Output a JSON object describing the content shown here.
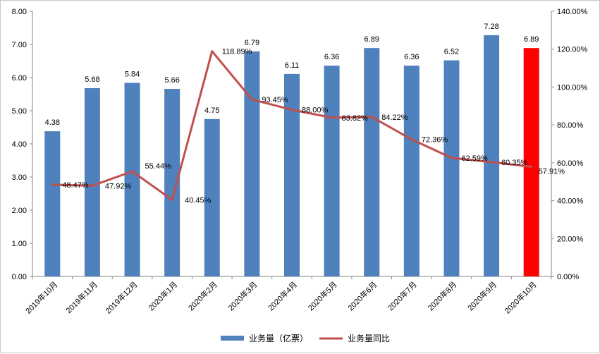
{
  "chart_data": {
    "type": "bar",
    "categories": [
      "2019年10月",
      "2019年11月",
      "2019年12月",
      "2020年1月",
      "2020年2月",
      "2020年3月",
      "2020年4月",
      "2020年5月",
      "2020年6月",
      "2020年7月",
      "2020年8月",
      "2020年9月",
      "2020年10月"
    ],
    "series": [
      {
        "name": "业务量（亿票）",
        "type": "bar",
        "axis": "left",
        "color": "#4f81bd",
        "highlight_color": "#ff0000",
        "highlight_index": 12,
        "values": [
          4.38,
          5.68,
          5.84,
          5.66,
          4.75,
          6.79,
          6.11,
          6.36,
          6.89,
          6.36,
          6.52,
          7.28,
          6.89
        ],
        "labels": [
          "4.38",
          "5.68",
          "5.84",
          "5.66",
          "4.75",
          "6.79",
          "6.11",
          "6.36",
          "6.89",
          "6.36",
          "6.52",
          "7.28",
          "6.89"
        ]
      },
      {
        "name": "业务量同比",
        "type": "line",
        "axis": "right",
        "color": "#c0504d",
        "values": [
          48.47,
          47.92,
          55.44,
          40.45,
          118.89,
          93.45,
          88.0,
          83.82,
          84.22,
          72.36,
          62.59,
          60.35,
          57.91
        ],
        "labels": [
          "48.47%",
          "47.92%",
          "55.44%",
          "40.45%",
          "118.89%",
          "93.45%",
          "88.00%",
          "83.82%",
          "84.22%",
          "72.36%",
          "62.59%",
          "60.35%",
          "57.91%"
        ]
      }
    ],
    "y_left": {
      "range": [
        0,
        8
      ],
      "ticks": [
        0,
        1,
        2,
        3,
        4,
        5,
        6,
        7,
        8
      ],
      "tick_labels": [
        "0.00",
        "1.00",
        "2.00",
        "3.00",
        "4.00",
        "5.00",
        "6.00",
        "7.00",
        "8.00"
      ]
    },
    "y_right": {
      "range": [
        0,
        140
      ],
      "ticks": [
        0,
        20,
        40,
        60,
        80,
        100,
        120,
        140
      ],
      "tick_labels": [
        "0.00%",
        "20.00%",
        "40.00%",
        "60.00%",
        "80.00%",
        "100.00%",
        "120.00%",
        "140.00%"
      ]
    },
    "grid": false,
    "legend_position": "bottom",
    "title": "",
    "xlabel": "",
    "ylabel": ""
  }
}
